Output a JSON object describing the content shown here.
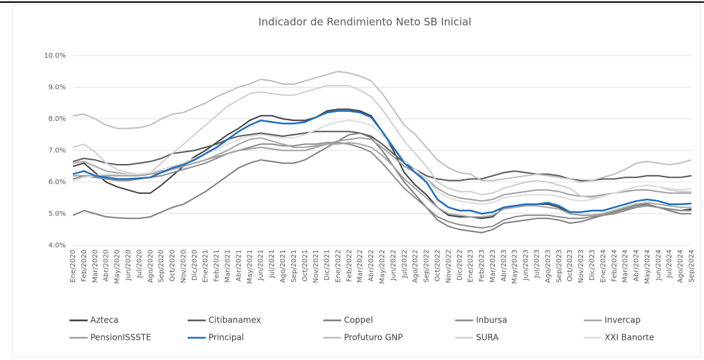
{
  "chart_data": {
    "type": "line",
    "title": "Indicador de Rendimiento  Neto SB Inicial",
    "categories": [
      "Ene/2020",
      "Feb/2020",
      "Mar/2020",
      "Abr/2020",
      "May/2020",
      "Jun/2020",
      "Jul/2020",
      "Ago/2020",
      "Sep/2020",
      "Oct/2020",
      "Nov/2020",
      "Dic/2020",
      "Ene/2021",
      "Feb/2021",
      "Mar/2021",
      "Abr/2021",
      "May/2021",
      "Jun/2021",
      "Jul/2021",
      "Ago/2021",
      "Sep/2021",
      "Oct/2021",
      "Nov/2021",
      "Dic/2021",
      "Ene/2022",
      "Feb/2022",
      "Mar/2022",
      "Abr/2022",
      "May/2022",
      "Jun/2022",
      "Jul/2022",
      "Ago/2022",
      "Sep/2022",
      "Oct/2022",
      "Nov/2022",
      "Dic/2022",
      "Ene/2023",
      "Feb/2023",
      "Mar/2023",
      "Abr/2023",
      "May/2023",
      "Jun/2023",
      "Jul/2023",
      "Ago/2023",
      "Sep/2023",
      "Oct/2023",
      "Nov/2023",
      "Dic/2023",
      "Ene/2024",
      "Feb/2024",
      "Mar/2024",
      "Abr/2024",
      "May/2024",
      "Jun/2024",
      "Jul/2024",
      "Ago/2024",
      "Sep/2024"
    ],
    "ylim": [
      4,
      10
    ],
    "yticks": [
      {
        "value": 4,
        "label": "4.0%"
      },
      {
        "value": 5,
        "label": "5.0%"
      },
      {
        "value": 6,
        "label": "6.0%"
      },
      {
        "value": 7,
        "label": "7.0%"
      },
      {
        "value": 8,
        "label": "8.0%"
      },
      {
        "value": 9,
        "label": "9.0%"
      },
      {
        "value": 10,
        "label": "10.0%"
      }
    ],
    "grid": true,
    "series": [
      {
        "name": "Azteca",
        "color": "#404040",
        "values": [
          6.5,
          6.6,
          6.3,
          6.0,
          5.85,
          5.75,
          5.65,
          5.65,
          5.9,
          6.2,
          6.5,
          6.8,
          7.0,
          7.25,
          7.5,
          7.7,
          7.95,
          8.1,
          8.1,
          8.0,
          7.95,
          7.95,
          8.05,
          8.25,
          8.3,
          8.3,
          8.25,
          8.1,
          7.6,
          7.0,
          6.3,
          5.9,
          5.6,
          5.2,
          4.95,
          4.9,
          4.9,
          4.85,
          4.9,
          5.2,
          5.25,
          5.3,
          5.3,
          5.3,
          5.2,
          5.0,
          4.95,
          4.95,
          5.0,
          5.1,
          5.2,
          5.3,
          5.3,
          5.2,
          5.15,
          5.1,
          5.15
        ]
      },
      {
        "name": "Citibanamex",
        "color": "#595959",
        "values": [
          6.65,
          6.75,
          6.7,
          6.6,
          6.55,
          6.55,
          6.6,
          6.65,
          6.75,
          6.9,
          6.95,
          7.0,
          7.1,
          7.2,
          7.35,
          7.45,
          7.5,
          7.55,
          7.5,
          7.45,
          7.5,
          7.55,
          7.6,
          7.6,
          7.6,
          7.6,
          7.55,
          7.45,
          7.2,
          6.9,
          6.6,
          6.4,
          6.2,
          6.1,
          6.05,
          6.05,
          6.1,
          6.1,
          6.2,
          6.3,
          6.35,
          6.3,
          6.25,
          6.25,
          6.2,
          6.1,
          6.05,
          6.05,
          6.1,
          6.1,
          6.15,
          6.15,
          6.2,
          6.2,
          6.15,
          6.15,
          6.2
        ]
      },
      {
        "name": "Coppel",
        "color": "#7f7f7f",
        "values": [
          4.95,
          5.1,
          5.0,
          4.9,
          4.87,
          4.85,
          4.85,
          4.9,
          5.05,
          5.2,
          5.3,
          5.5,
          5.7,
          5.95,
          6.2,
          6.45,
          6.6,
          6.7,
          6.65,
          6.6,
          6.6,
          6.7,
          6.9,
          7.1,
          7.3,
          7.5,
          7.55,
          7.4,
          7.0,
          6.5,
          6.0,
          5.6,
          5.2,
          4.8,
          4.6,
          4.5,
          4.45,
          4.4,
          4.5,
          4.7,
          4.75,
          4.8,
          4.85,
          4.85,
          4.8,
          4.7,
          4.75,
          4.85,
          4.95,
          5.05,
          5.15,
          5.25,
          5.3,
          5.2,
          5.1,
          5.0,
          5.0
        ]
      },
      {
        "name": "Inbursa",
        "color": "#8c8c8c",
        "values": [
          6.1,
          6.2,
          6.15,
          6.1,
          6.05,
          6.05,
          6.1,
          6.15,
          6.2,
          6.3,
          6.4,
          6.5,
          6.6,
          6.75,
          6.9,
          7.0,
          7.1,
          7.2,
          7.2,
          7.15,
          7.15,
          7.2,
          7.2,
          7.25,
          7.25,
          7.2,
          7.1,
          6.95,
          6.6,
          6.2,
          5.8,
          5.5,
          5.2,
          4.9,
          4.75,
          4.65,
          4.6,
          4.55,
          4.6,
          4.8,
          4.9,
          4.95,
          4.95,
          4.95,
          4.9,
          4.85,
          4.85,
          4.9,
          4.95,
          5.0,
          5.1,
          5.2,
          5.25,
          5.2,
          5.15,
          5.1,
          5.1
        ]
      },
      {
        "name": "Invercap",
        "color": "#a6a6a6",
        "values": [
          6.6,
          6.65,
          6.5,
          6.35,
          6.3,
          6.25,
          6.25,
          6.3,
          6.35,
          6.4,
          6.5,
          6.6,
          6.7,
          6.85,
          7.0,
          7.2,
          7.35,
          7.4,
          7.3,
          7.2,
          7.1,
          7.1,
          7.15,
          7.2,
          7.2,
          7.25,
          7.2,
          7.1,
          6.85,
          6.5,
          6.1,
          5.8,
          5.5,
          5.2,
          5.0,
          4.95,
          4.9,
          4.9,
          4.95,
          5.15,
          5.2,
          5.25,
          5.25,
          5.2,
          5.15,
          5.0,
          4.95,
          4.95,
          5.0,
          5.1,
          5.2,
          5.3,
          5.35,
          5.3,
          5.25,
          5.2,
          5.2
        ]
      },
      {
        "name": "PensionISSSTE",
        "color": "#a0a0a0",
        "values": [
          6.2,
          6.2,
          6.2,
          6.2,
          6.2,
          6.2,
          6.2,
          6.25,
          6.3,
          6.4,
          6.5,
          6.6,
          6.7,
          6.8,
          6.9,
          7.0,
          7.05,
          7.1,
          7.05,
          7.0,
          7.0,
          7.0,
          7.1,
          7.2,
          7.3,
          7.35,
          7.4,
          7.35,
          7.1,
          6.8,
          6.5,
          6.3,
          6.1,
          5.8,
          5.6,
          5.5,
          5.45,
          5.4,
          5.45,
          5.6,
          5.65,
          5.7,
          5.75,
          5.75,
          5.7,
          5.6,
          5.55,
          5.55,
          5.6,
          5.65,
          5.7,
          5.75,
          5.75,
          5.7,
          5.65,
          5.65,
          5.65
        ]
      },
      {
        "name": "Principal",
        "color": "#1f6fbf",
        "values": [
          6.25,
          6.35,
          6.2,
          6.15,
          6.1,
          6.1,
          6.12,
          6.15,
          6.3,
          6.45,
          6.55,
          6.7,
          6.9,
          7.1,
          7.35,
          7.6,
          7.8,
          7.95,
          7.9,
          7.85,
          7.85,
          7.9,
          8.05,
          8.2,
          8.25,
          8.25,
          8.2,
          8.05,
          7.6,
          7.1,
          6.6,
          6.3,
          6.0,
          5.45,
          5.2,
          5.1,
          5.1,
          5.0,
          5.05,
          5.2,
          5.25,
          5.3,
          5.3,
          5.35,
          5.25,
          5.05,
          5.05,
          5.1,
          5.1,
          5.2,
          5.3,
          5.4,
          5.45,
          5.4,
          5.3,
          5.3,
          5.32
        ]
      },
      {
        "name": "Profuturo GNP",
        "color": "#bfbfbf",
        "values": [
          8.1,
          8.15,
          8.0,
          7.8,
          7.7,
          7.7,
          7.72,
          7.8,
          8.0,
          8.15,
          8.2,
          8.35,
          8.5,
          8.7,
          8.85,
          9.0,
          9.1,
          9.25,
          9.2,
          9.1,
          9.1,
          9.2,
          9.3,
          9.4,
          9.5,
          9.45,
          9.35,
          9.2,
          8.8,
          8.3,
          7.8,
          7.5,
          7.1,
          6.7,
          6.45,
          6.3,
          6.25,
          6.05,
          6.05,
          6.1,
          6.15,
          6.2,
          6.25,
          6.2,
          6.15,
          6.1,
          6.0,
          6.05,
          6.15,
          6.25,
          6.4,
          6.6,
          6.65,
          6.6,
          6.55,
          6.6,
          6.7
        ]
      },
      {
        "name": "SURA",
        "color": "#cfcfcf",
        "values": [
          7.1,
          7.2,
          6.95,
          6.6,
          6.4,
          6.3,
          6.25,
          6.3,
          6.6,
          6.9,
          7.2,
          7.5,
          7.8,
          8.1,
          8.4,
          8.6,
          8.8,
          8.85,
          8.8,
          8.75,
          8.75,
          8.85,
          8.95,
          9.05,
          9.05,
          9.05,
          8.9,
          8.7,
          8.3,
          7.8,
          7.3,
          6.9,
          6.5,
          6.0,
          5.8,
          5.7,
          5.7,
          5.6,
          5.65,
          5.8,
          5.9,
          6.0,
          6.05,
          6.0,
          5.9,
          5.8,
          5.55,
          5.5,
          5.55,
          5.65,
          5.75,
          5.85,
          5.9,
          5.85,
          5.75,
          5.7,
          5.7
        ]
      },
      {
        "name": "XXI Banorte",
        "color": "#dcdcdc",
        "values": [
          6.05,
          6.15,
          6.2,
          6.25,
          6.25,
          6.25,
          6.25,
          6.3,
          6.4,
          6.5,
          6.6,
          6.75,
          6.9,
          7.05,
          7.2,
          7.35,
          7.45,
          7.5,
          7.45,
          7.4,
          7.4,
          7.5,
          7.65,
          7.8,
          7.9,
          7.95,
          7.9,
          7.8,
          7.5,
          7.1,
          6.7,
          6.4,
          6.1,
          5.7,
          5.5,
          5.4,
          5.35,
          5.3,
          5.35,
          5.5,
          5.55,
          5.6,
          5.6,
          5.6,
          5.55,
          5.45,
          5.4,
          5.45,
          5.55,
          5.65,
          5.75,
          5.85,
          5.9,
          5.85,
          5.8,
          5.75,
          5.8
        ]
      }
    ]
  }
}
